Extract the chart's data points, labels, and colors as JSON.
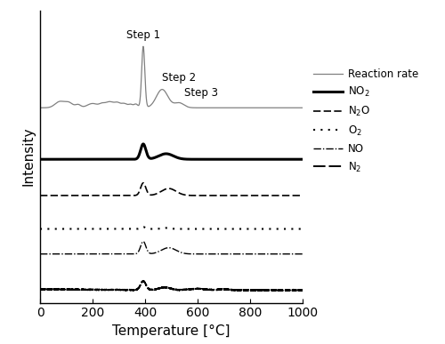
{
  "title": "",
  "xlabel": "Temperature [°C]",
  "ylabel": "Intensity",
  "xlim": [
    0,
    1000
  ],
  "xticks": [
    0,
    200,
    400,
    600,
    800,
    1000
  ],
  "figsize": [
    5.0,
    3.87
  ],
  "dpi": 100,
  "bg_color": "#ffffff"
}
